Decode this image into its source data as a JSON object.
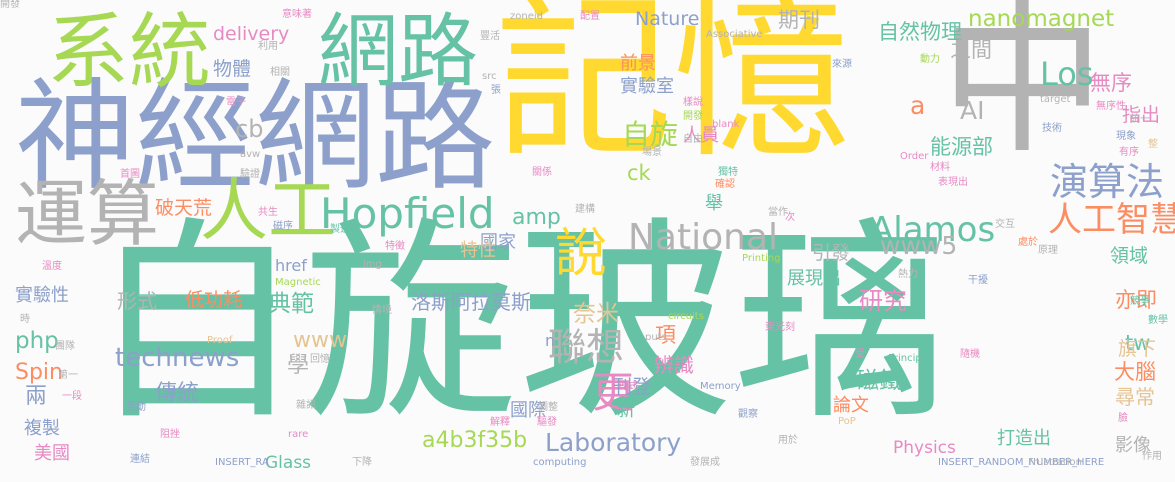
{
  "palette": {
    "green": "#66c2a5",
    "orange": "#fc8d62",
    "blue": "#8da0cb",
    "pink": "#e78ac3",
    "lime": "#a6d854",
    "yellow": "#ffd92f",
    "tan": "#e5c494",
    "gray": "#b3b3b3"
  },
  "words": [
    {
      "text": "自旋玻璃",
      "color": "green"
    },
    {
      "text": "記憶",
      "color": "yellow"
    },
    {
      "text": "中",
      "color": "gray"
    },
    {
      "text": "神經網路",
      "color": "blue"
    },
    {
      "text": "系統",
      "color": "lime"
    },
    {
      "text": "網路",
      "color": "green"
    },
    {
      "text": "運算",
      "color": "gray"
    },
    {
      "text": "人工",
      "color": "lime"
    },
    {
      "text": "Hopfield",
      "color": "green"
    },
    {
      "text": "說",
      "color": "yellow"
    },
    {
      "text": "演算法",
      "color": "blue"
    },
    {
      "text": "National",
      "color": "gray"
    },
    {
      "text": "聯想",
      "color": "gray"
    },
    {
      "text": "Alamos",
      "color": "green"
    },
    {
      "text": "人工智慧",
      "color": "orange"
    },
    {
      "text": "nanomagnet",
      "color": "lime"
    },
    {
      "text": "Laboratory",
      "color": "blue"
    },
    {
      "text": "更",
      "color": "pink"
    },
    {
      "text": "technews",
      "color": "blue"
    },
    {
      "text": "Los",
      "color": "green"
    },
    {
      "text": "自旋",
      "color": "lime"
    },
    {
      "text": "a4b3f35b",
      "color": "lime"
    },
    {
      "text": "delivery",
      "color": "pink"
    },
    {
      "text": "物體",
      "color": "blue"
    },
    {
      "text": "期刊",
      "color": "gray"
    },
    {
      "text": "自然物理",
      "color": "green"
    },
    {
      "text": "之間",
      "color": "gray"
    },
    {
      "text": "無序",
      "color": "pink"
    },
    {
      "text": "前景",
      "color": "orange"
    },
    {
      "text": "實驗室",
      "color": "blue"
    },
    {
      "text": "Nature",
      "color": "blue"
    },
    {
      "text": "AI",
      "color": "gray"
    },
    {
      "text": "a",
      "color": "orange"
    },
    {
      "text": "指出",
      "color": "pink"
    },
    {
      "text": "cb",
      "color": "gray"
    },
    {
      "text": "人員",
      "color": "pink"
    },
    {
      "text": "ck",
      "color": "lime"
    },
    {
      "text": "能源部",
      "color": "green"
    },
    {
      "text": "領域",
      "color": "green"
    },
    {
      "text": "www5",
      "color": "gray"
    },
    {
      "text": "amp",
      "color": "green"
    },
    {
      "text": "破天荒",
      "color": "orange"
    },
    {
      "text": "引發",
      "color": "gray"
    },
    {
      "text": "國家",
      "color": "blue"
    },
    {
      "text": "特性",
      "color": "tan"
    },
    {
      "text": "展現出",
      "color": "green"
    },
    {
      "text": "實驗性",
      "color": "blue"
    },
    {
      "text": "形式",
      "color": "gray"
    },
    {
      "text": "低功耗",
      "color": "orange"
    },
    {
      "text": "典範",
      "color": "green"
    },
    {
      "text": "洛斯阿拉莫斯",
      "color": "blue"
    },
    {
      "text": "研究",
      "color": "pink"
    },
    {
      "text": "亦即",
      "color": "orange"
    },
    {
      "text": "php",
      "color": "green"
    },
    {
      "text": "www",
      "color": "tan"
    },
    {
      "text": "奈米",
      "color": "tan"
    },
    {
      "text": "項",
      "color": "orange"
    },
    {
      "text": "磁鐵",
      "color": "green"
    },
    {
      "text": "tw",
      "color": "green"
    },
    {
      "text": "Spin",
      "color": "orange"
    },
    {
      "text": "學",
      "color": "gray"
    },
    {
      "text": "刊登",
      "color": "blue"
    },
    {
      "text": "旗下",
      "color": "tan"
    },
    {
      "text": "大腦",
      "color": "orange"
    },
    {
      "text": "兩",
      "color": "blue"
    },
    {
      "text": "傳統",
      "color": "blue"
    },
    {
      "text": "辨識",
      "color": "pink"
    },
    {
      "text": "尋常",
      "color": "tan"
    },
    {
      "text": "國際",
      "color": "blue"
    },
    {
      "text": "新",
      "color": "green"
    },
    {
      "text": "論文",
      "color": "orange"
    },
    {
      "text": "複製",
      "color": "blue"
    },
    {
      "text": "美國",
      "color": "pink"
    },
    {
      "text": "Physics",
      "color": "pink"
    },
    {
      "text": "Glass",
      "color": "green"
    },
    {
      "text": "打造出",
      "color": "green"
    },
    {
      "text": "影像",
      "color": "gray"
    },
    {
      "text": "href",
      "color": "blue"
    },
    {
      "text": "n",
      "color": "blue"
    },
    {
      "text": "舉",
      "color": "green"
    },
    {
      "text": "意味著",
      "color": "pink"
    },
    {
      "text": "zoneid",
      "color": "gray"
    },
    {
      "text": "配置",
      "color": "pink"
    },
    {
      "text": "利用",
      "color": "gray"
    },
    {
      "text": "豐活",
      "color": "gray"
    },
    {
      "text": "相關",
      "color": "gray"
    },
    {
      "text": "src",
      "color": "gray"
    },
    {
      "text": "張",
      "color": "blue"
    },
    {
      "text": "電子",
      "color": "pink"
    },
    {
      "text": "來源",
      "color": "blue"
    },
    {
      "text": "動力",
      "color": "lime"
    },
    {
      "text": "target",
      "color": "gray"
    },
    {
      "text": "技術",
      "color": "blue"
    },
    {
      "text": "無序性",
      "color": "pink"
    },
    {
      "text": "統一",
      "color": "gray"
    },
    {
      "text": "現象",
      "color": "blue"
    },
    {
      "text": "有序",
      "color": "pink"
    },
    {
      "text": "整",
      "color": "tan"
    },
    {
      "text": "Order",
      "color": "pink"
    },
    {
      "text": "材料",
      "color": "pink"
    },
    {
      "text": "表現出",
      "color": "pink"
    },
    {
      "text": "場景",
      "color": "gray"
    },
    {
      "text": "_blank",
      "color": "pink"
    },
    {
      "text": "獨特",
      "color": "green"
    },
    {
      "text": "確認",
      "color": "orange"
    },
    {
      "text": "開發",
      "color": "lime"
    },
    {
      "text": "樣說",
      "color": "pink"
    },
    {
      "text": "關係",
      "color": "pink"
    },
    {
      "text": "首圖",
      "color": "pink"
    },
    {
      "text": "驗證",
      "color": "gray"
    },
    {
      "text": "avw",
      "color": "gray"
    },
    {
      "text": "共生",
      "color": "pink"
    },
    {
      "text": "磁序",
      "color": "blue"
    },
    {
      "text": "製造",
      "color": "green"
    },
    {
      "text": "建構",
      "color": "gray"
    },
    {
      "text": "當作",
      "color": "gray"
    },
    {
      "text": "次",
      "color": "pink"
    },
    {
      "text": "交互",
      "color": "gray"
    },
    {
      "text": "處於",
      "color": "orange"
    },
    {
      "text": "原理",
      "color": "gray"
    },
    {
      "text": "溫度",
      "color": "pink"
    },
    {
      "text": "Magnetic",
      "color": "lime"
    },
    {
      "text": "img",
      "color": "gray"
    },
    {
      "text": "特徵",
      "color": "pink"
    },
    {
      "text": "Printing",
      "color": "lime"
    },
    {
      "text": "熱力",
      "color": "gray"
    },
    {
      "text": "circuits",
      "color": "lime"
    },
    {
      "text": "東光刻",
      "color": "pink"
    },
    {
      "text": "干擾",
      "color": "blue"
    },
    {
      "text": "競爭",
      "color": "green"
    },
    {
      "text": "數學",
      "color": "green"
    },
    {
      "text": "時",
      "color": "gray"
    },
    {
      "text": "情境",
      "color": "gray"
    },
    {
      "text": "團隊",
      "color": "gray"
    },
    {
      "text": "Proof",
      "color": "tan"
    },
    {
      "text": "回憶",
      "color": "gray"
    },
    {
      "text": "puts",
      "color": "gray"
    },
    {
      "text": "受",
      "color": "pink"
    },
    {
      "text": "Principle",
      "color": "green"
    },
    {
      "text": "隨機",
      "color": "pink"
    },
    {
      "text": "第一",
      "color": "gray"
    },
    {
      "text": "一段",
      "color": "pink"
    },
    {
      "text": "模式",
      "color": "pink"
    },
    {
      "text": "Memory",
      "color": "blue"
    },
    {
      "text": "互動",
      "color": "blue"
    },
    {
      "text": "雜訊",
      "color": "gray"
    },
    {
      "text": "調整",
      "color": "gray"
    },
    {
      "text": "解釋",
      "color": "pink"
    },
    {
      "text": "驅發",
      "color": "pink"
    },
    {
      "text": "觀察",
      "color": "blue"
    },
    {
      "text": "PoP",
      "color": "tan"
    },
    {
      "text": "臉",
      "color": "pink"
    },
    {
      "text": "阻挫",
      "color": "pink"
    },
    {
      "text": "rare",
      "color": "pink"
    },
    {
      "text": "用於",
      "color": "gray"
    },
    {
      "text": "作用",
      "color": "gray"
    },
    {
      "text": "連結",
      "color": "blue"
    },
    {
      "text": "INSERT_RA",
      "color": "blue"
    },
    {
      "text": "下降",
      "color": "gray"
    },
    {
      "text": "computing",
      "color": "blue"
    },
    {
      "text": "發展成",
      "color": "gray"
    },
    {
      "text": "INSERT_RANDOM_NUMBER_HERE",
      "color": "blue"
    },
    {
      "text": "Frustration",
      "color": "gray"
    },
    {
      "text": "Associative",
      "color": "gray"
    },
    {
      "text": "自由",
      "color": "gray"
    },
    {
      "text": "開發",
      "color": "gray"
    }
  ]
}
